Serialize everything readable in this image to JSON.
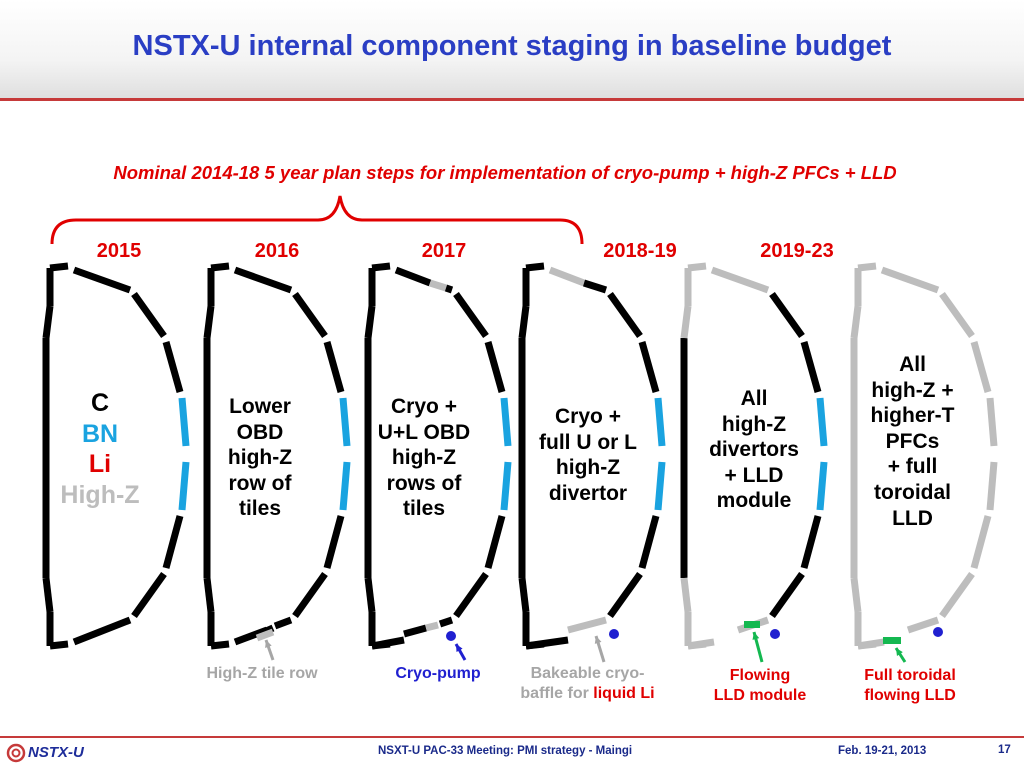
{
  "slide": {
    "title": "NSTX-U internal component staging in baseline budget",
    "subtitle": "Nominal 2014-18 5 year plan steps for implementation of cryo-pump + high-Z PFCs + LLD",
    "slide_number": "17"
  },
  "stages": [
    {
      "year": "2015"
    },
    {
      "year": "2016",
      "label": [
        "Lower",
        "OBD",
        "high-Z",
        "row of",
        "tiles"
      ]
    },
    {
      "year": "2017",
      "label": [
        "Cryo +",
        "U+L OBD",
        "high-Z",
        "rows of",
        "tiles"
      ]
    },
    {
      "year": "2018-19",
      "label": [
        "Cryo +",
        "full U or L",
        "high-Z",
        "divertor"
      ]
    },
    {
      "year": "2019-23",
      "label": [
        "All",
        "high-Z",
        "divertors",
        "+ LLD",
        "module"
      ]
    },
    {
      "label": [
        "All",
        "high-Z +",
        "higher-T",
        "PFCs",
        "+ full",
        "toroidal",
        "LLD"
      ]
    }
  ],
  "legend": {
    "c": "C",
    "bn": "BN",
    "li": "Li",
    "highz": "High-Z"
  },
  "colors": {
    "carbon": "#000000",
    "bn": "#1aa3e0",
    "li": "#e00000",
    "highz": "#bdbdbd",
    "lld": "#14b850",
    "cryo": "#2020d0",
    "title": "#2a3ec4"
  },
  "annotations": {
    "highz_row": "High-Z tile row",
    "cryo_pump": "Cryo-pump",
    "baffle_line1": "Bakeable cryo-",
    "baffle_line2_a": "baffle for ",
    "baffle_line2_b": "liquid Li",
    "flowing_1": "Flowing",
    "flowing_2": "LLD module",
    "full_1": "Full toroidal",
    "full_2": "flowing LLD"
  },
  "footer": {
    "logo": "NSTX-U",
    "meeting": "NSXT-U PAC-33 Meeting: PMI strategy - Maingi",
    "date": "Feb. 19-21, 2013"
  }
}
